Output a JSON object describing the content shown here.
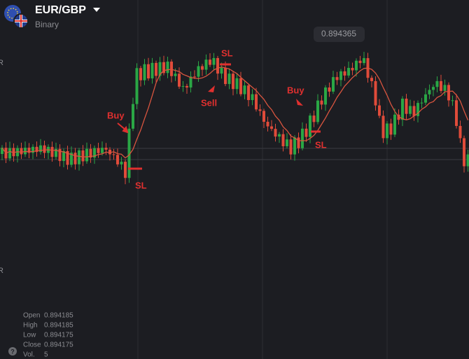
{
  "header": {
    "title": "EUR/GBP",
    "subtitle": "Binary"
  },
  "price_label": "0.894365",
  "axis_fragments": [
    "R",
    "R"
  ],
  "annotations": [
    {
      "text": "Buy"
    },
    {
      "text": "SL"
    },
    {
      "text": "SL"
    },
    {
      "text": "Sell"
    },
    {
      "text": "Buy"
    },
    {
      "text": "SL"
    }
  ],
  "ohlc": [
    {
      "label": "Open",
      "value": "0.894185"
    },
    {
      "label": "High",
      "value": "0.894185"
    },
    {
      "label": "Low",
      "value": "0.894175"
    },
    {
      "label": "Close",
      "value": "0.894175"
    },
    {
      "label": "Vol.",
      "value": "5"
    }
  ]
}
